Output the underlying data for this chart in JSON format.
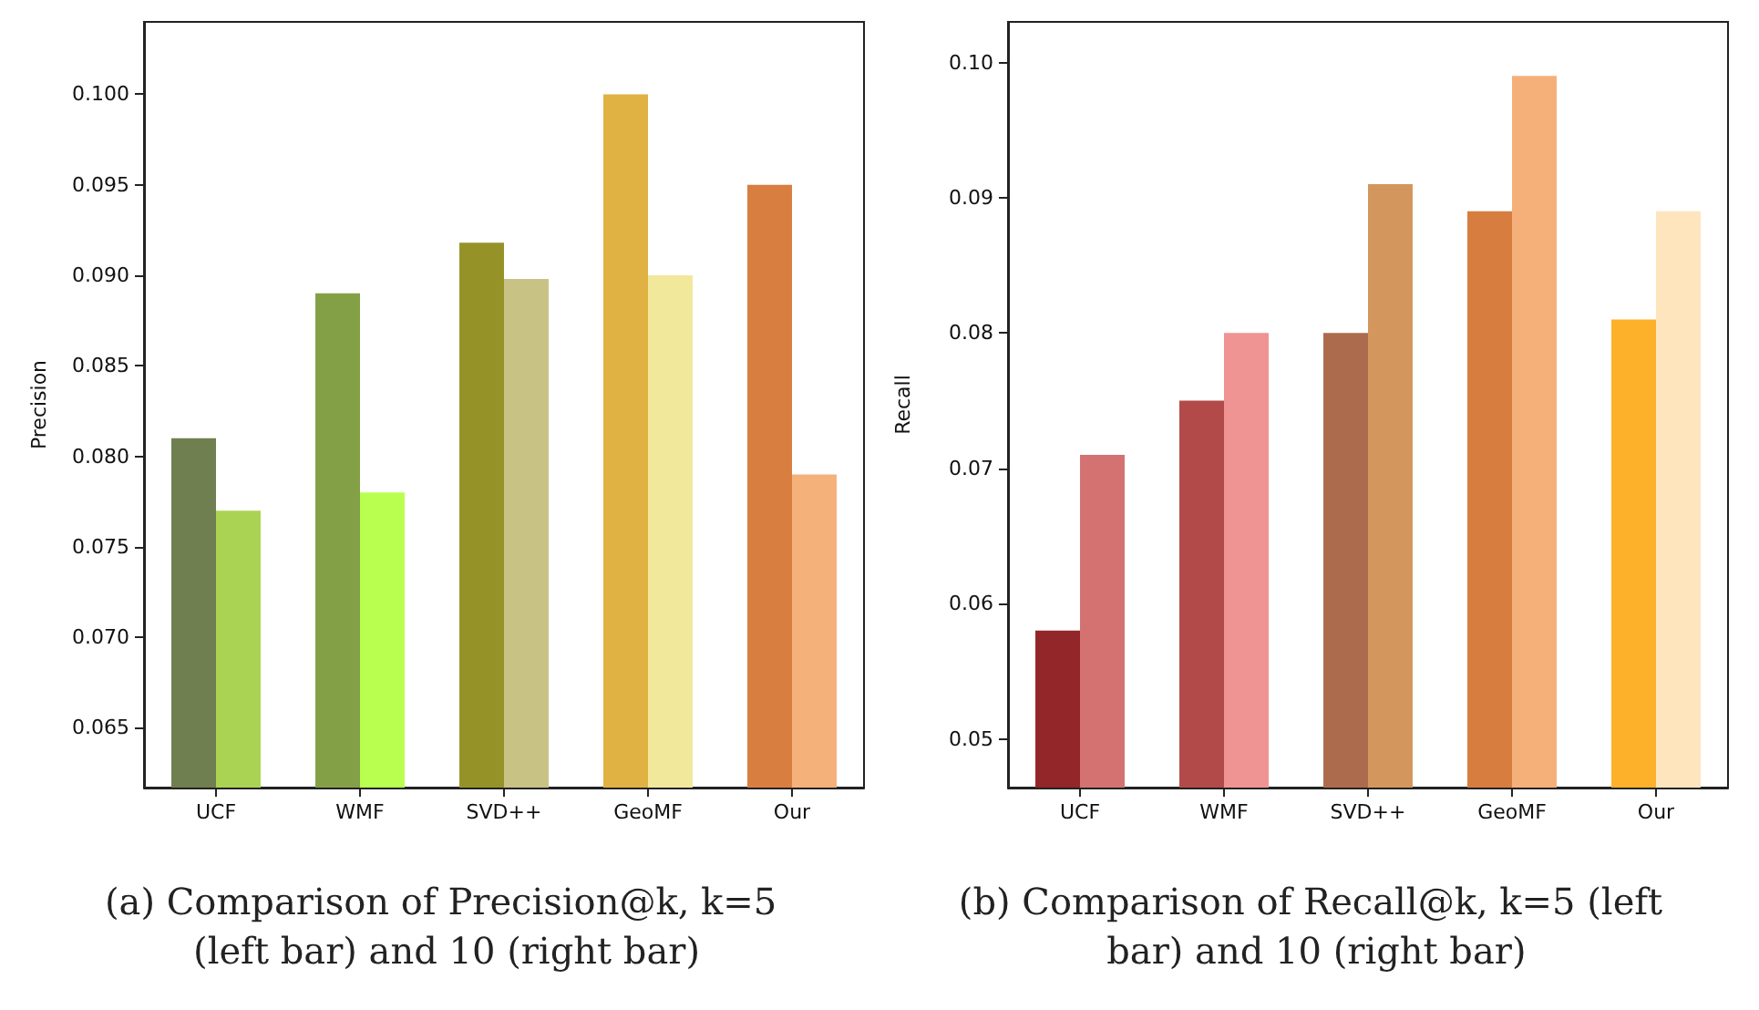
{
  "chart_data": [
    {
      "type": "bar",
      "title": "(a) Comparison of Precision@k, k=5 (left bar) and 10 (right bar)",
      "ylabel": "Precision",
      "categories": [
        "UCF",
        "WMF",
        "SVD++",
        "GeoMF",
        "Our"
      ],
      "series": [
        {
          "colors": [
            "#6f7f4f",
            "#84a046",
            "#959328",
            "#e0b243",
            "#d87e41"
          ],
          "values": [
            0.081,
            0.089,
            0.0918,
            0.1,
            0.095
          ]
        },
        {
          "colors": [
            "#aad354",
            "#b8ff50",
            "#c8c385",
            "#f2e89c",
            "#f5b17a"
          ],
          "values": [
            0.077,
            0.078,
            0.0898,
            0.09,
            0.079
          ]
        }
      ],
      "ylim": [
        0.0617,
        0.104
      ],
      "yticks": [
        0.065,
        {
          "value": 0.07,
          "label": "0.070"
        },
        0.075,
        {
          "value": 0.08,
          "label": "0.080"
        },
        0.085,
        {
          "value": 0.09,
          "label": "0.090"
        },
        0.095,
        {
          "value": 0.1,
          "label": "0.100"
        }
      ],
      "grid": false
    },
    {
      "type": "bar",
      "title": "(b) Comparison of Recall@k, k=5 (left bar) and 10 (right bar)",
      "ylabel": "Recall",
      "categories": [
        "UCF",
        "WMF",
        "SVD++",
        "GeoMF",
        "Our"
      ],
      "series": [
        {
          "colors": [
            "#922628",
            "#b24a4a",
            "#ad6b4d",
            "#d87d40",
            "#fdb02a"
          ],
          "values": [
            0.058,
            0.075,
            0.08,
            0.089,
            0.081
          ]
        },
        {
          "colors": [
            "#d47272",
            "#f09393",
            "#d3975d",
            "#f5b07a",
            "#fee5bd"
          ],
          "values": [
            0.071,
            0.08,
            0.091,
            0.099,
            0.089
          ]
        }
      ],
      "ylim": [
        0.0464,
        0.103
      ],
      "yticks": [
        0.05,
        0.06,
        0.07,
        0.08,
        0.09,
        {
          "value": 0.1,
          "label": "0.10"
        }
      ],
      "grid": false
    }
  ]
}
